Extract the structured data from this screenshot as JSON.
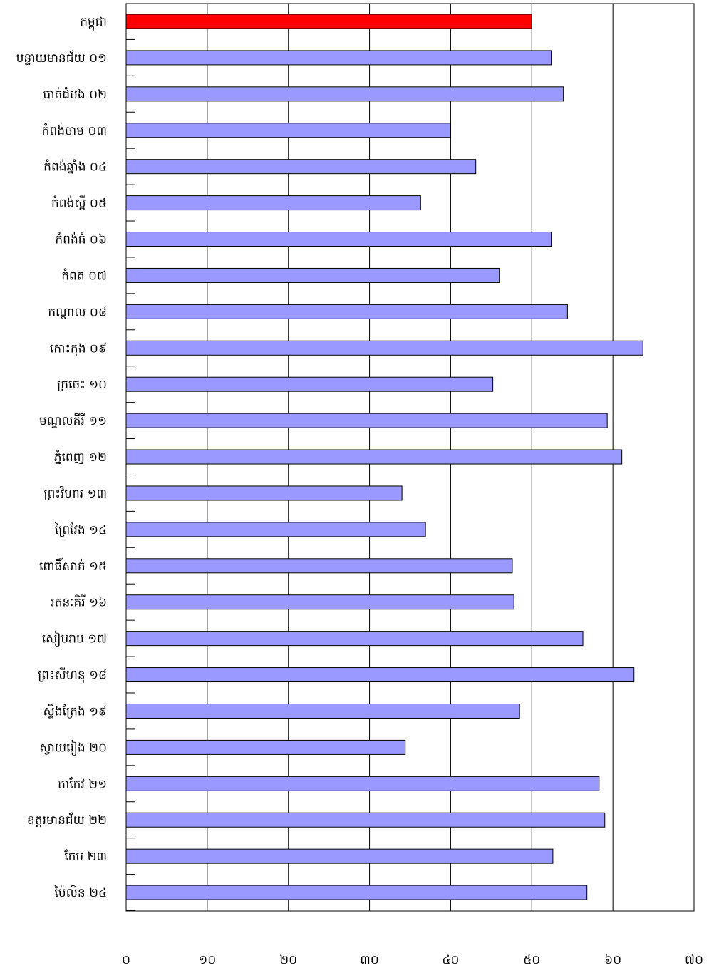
{
  "chart_data": {
    "type": "bar",
    "orientation": "horizontal",
    "categories": [
      "កម្ពុជា",
      "បន្ទាយមានជ័យ ០១",
      "បាត់ដំបង ០២",
      "កំពង់ចាម ០៣",
      "កំពង់ឆ្នាំង ០៤",
      "កំពង់ស្ពឺ ០៥",
      "កំពង់ធំ ០៦",
      "កំពត ០៧",
      "កណ្ដាល ០៨",
      "កោះកុង ០៩",
      "ក្រចេះ ១០",
      "មណ្ឌលគីរី ១១",
      "ភ្នំពេញ ១២",
      "ព្រះវិហារ ១៣",
      "ព្រៃវែង ១៤",
      "ពោធិ៍សាត់ ១៥",
      "រតនៈគិរី ១៦",
      "សៀមរាប ១៧",
      "ព្រះសីហនុ ១៨",
      "ស្ទឹងត្រែង ១៩",
      "ស្វាយរៀង ២០",
      "តាកែវ ២១",
      "ឧត្តរមានជ័យ ២២",
      "កែប ២៣",
      "ប៉ៃលិន ២៤"
    ],
    "values": [
      50.0,
      52.4,
      53.9,
      40.0,
      43.1,
      36.3,
      52.4,
      46.0,
      54.4,
      63.7,
      45.2,
      59.3,
      61.1,
      34.0,
      36.9,
      47.6,
      47.8,
      56.3,
      62.6,
      48.5,
      34.4,
      58.3,
      59.0,
      52.6,
      56.8
    ],
    "highlight_index": 0,
    "xlim": [
      0,
      70
    ],
    "xticks": [
      0,
      10,
      20,
      30,
      40,
      50,
      60,
      70
    ],
    "xtick_labels": [
      "០",
      "១០",
      "២០",
      "៣០",
      "៤០",
      "៥០",
      "៦០",
      "៧០"
    ],
    "grid": true,
    "colors": {
      "bar": "#9999ff",
      "highlight_bar": "#ff0000",
      "bar_border": "#000000",
      "gridline": "#000000",
      "background": "#ffffff"
    }
  }
}
